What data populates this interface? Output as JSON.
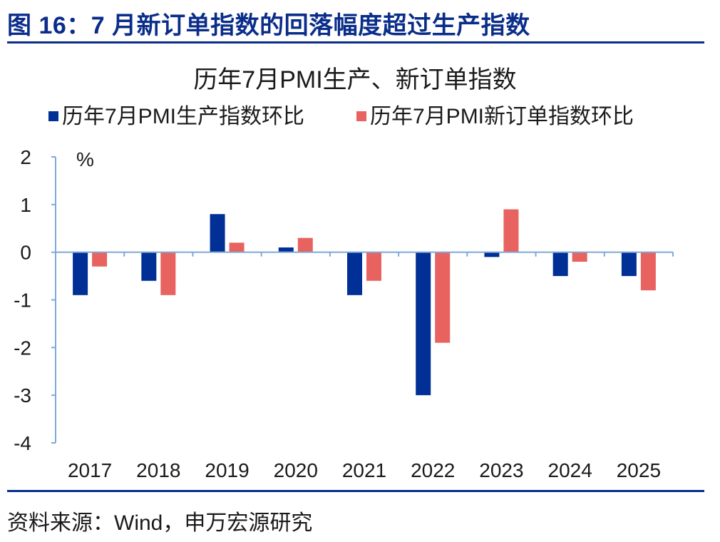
{
  "figure_title": "图 16：7 月新订单指数的回落幅度超过生产指数",
  "source_note": "资料来源：Wind，申万宏源研究",
  "colors": {
    "production": "#002f96",
    "new_orders": "#e8625f",
    "axis": "#7fa8d8",
    "title": "#0a2d8a"
  },
  "chart_data": {
    "type": "bar",
    "title": "历年7月PMI生产、新订单指数",
    "unit": "%",
    "categories": [
      "2017",
      "2018",
      "2019",
      "2020",
      "2021",
      "2022",
      "2023",
      "2024",
      "2025"
    ],
    "series": [
      {
        "name": "历年7月PMI生产指数环比",
        "values": [
          -0.9,
          -0.6,
          0.8,
          0.1,
          -0.9,
          -3.0,
          -0.1,
          -0.5,
          -0.5
        ]
      },
      {
        "name": "历年7月PMI新订单指数环比",
        "values": [
          -0.3,
          -0.9,
          0.2,
          0.3,
          -0.6,
          -1.9,
          0.9,
          -0.2,
          -0.8
        ]
      }
    ],
    "ylim": [
      -4,
      2
    ],
    "yticks": [
      "2",
      "1",
      "0",
      "-1",
      "-2",
      "-3",
      "-4"
    ],
    "legend_position": "top"
  }
}
